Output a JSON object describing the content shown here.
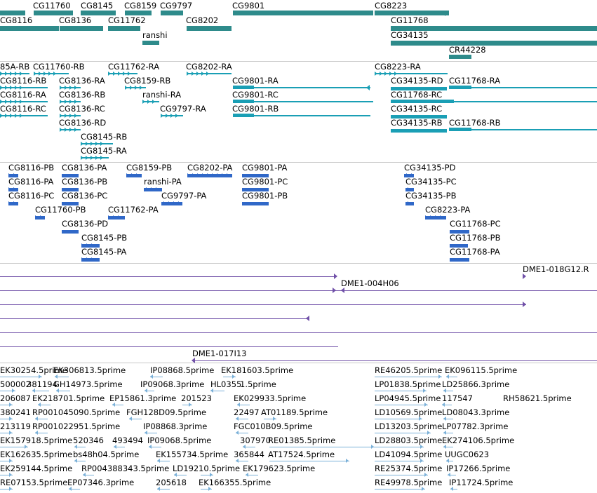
{
  "colors": {
    "gene": "#2e8b8b",
    "transcript": "#1a9fb5",
    "protein": "#3068c8",
    "cdna": "#7050a8",
    "est": "#7ab0d8",
    "separator": "#c8c8c8"
  },
  "tracks": {
    "genes": [
      "CG11760",
      "CG8145",
      "CG8159",
      "CG9797",
      "CG9801",
      "CG8223",
      "CG8116",
      "CG8136",
      "CG11762",
      "CG8202",
      "CG11768",
      "ranshi",
      "CG34135",
      "CR44228"
    ],
    "transcripts": [
      "85A-RB",
      "CG11760-RB",
      "CG11762-RA",
      "CG8202-RA",
      "CG8223-RA",
      "CG8116-RB",
      "CG8136-RA",
      "CG8159-RB",
      "CG9801-RA",
      "CG34135-RD",
      "CG11768-RA",
      "CG8116-RA",
      "CG8136-RB",
      "ranshi-RA",
      "CG9801-RC",
      "CG11768-RC",
      "CG8116-RC",
      "CG8136-RC",
      "CG9797-RA",
      "CG9801-RB",
      "CG34135-RC",
      "CG8136-RD",
      "CG34135-RB",
      "CG11768-RB",
      "CG8145-RB",
      "CG8145-RA"
    ],
    "proteins": [
      "CG8116-PB",
      "CG8136-PA",
      "CG8159-PB",
      "CG8202-PA",
      "CG9801-PA",
      "CG34135-PD",
      "CG8116-PA",
      "CG8136-PB",
      "ranshi-PA",
      "CG9801-PC",
      "CG34135-PC",
      "CG8116-PC",
      "CG8136-PC",
      "CG9797-PA",
      "CG9801-PB",
      "CG34135-PB",
      "CG11760-PB",
      "CG11762-PA",
      "CG8223-PA",
      "CG8136-PD",
      "CG11768-PC",
      "CG8145-PB",
      "CG11768-PB",
      "CG8145-PA",
      "CG11768-PA"
    ],
    "cdna": [
      "DME1-018G12.R",
      "DME1-004H06",
      "DME1-017I13"
    ],
    "ests": [
      "EK30254.5prime",
      "EK306813.5prime",
      "IP08868.5prime",
      "EK181603.5prime",
      "RE46205.5prime",
      "EK096115.5prime",
      "500002",
      "381194",
      "GH14973.5prime",
      "IP09068.3prime",
      "HL0355",
      "1.5prime",
      "LP01838.5prime",
      "LD25866.3prime",
      "206087",
      "EK218701.5prime",
      "EP15861.3prime",
      "201523",
      "EK029933.5prime",
      "LP04945.5prime",
      "117547",
      "RH58621.5prime",
      "380241",
      "RP001045090.5prime",
      "FGH128D09.5prime",
      "22497",
      "AT01189.5prime",
      "LD10569.5prime",
      "LD08043.3prime",
      "213119",
      "RP001022951.5prime",
      "IP08868.3prime",
      "FGC010B09.5prime",
      "LD13203.5prime",
      "LP07782.3prime",
      "EK157918.5prime",
      "520346",
      "493494",
      "IP09068.5prime",
      "307970",
      "RE01385.5prime",
      "LD28803.5prime",
      "EK274106.5prime",
      "EK162635.5prime",
      "bs48h04.5prime",
      "EK155734.5prime",
      "365844",
      "AT17524.5prime",
      "LD41094.5prime",
      "UUGC0623",
      "EK259144.5prime",
      "RP004388343.5prime",
      "LD192",
      "10.5prime",
      "EK179623.5prime",
      "RE25374.5prime",
      "IP17266.5prime",
      "RE07153.5prime",
      "EP07346.3prime",
      "205618",
      "EK166355.5prime",
      "RE49978.5prime",
      "IP11724.5prime"
    ]
  }
}
